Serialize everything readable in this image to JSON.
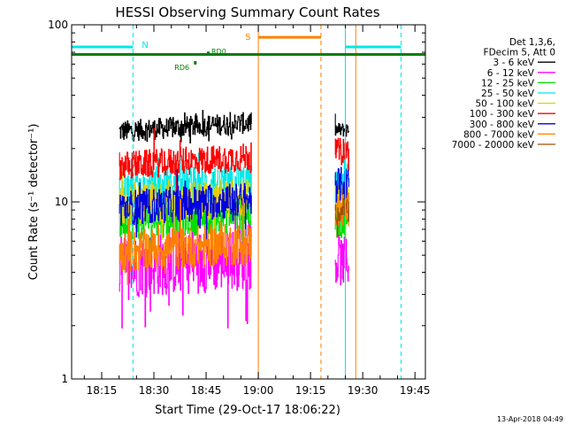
{
  "chart_data": {
    "type": "line",
    "title": "HESSI Observing Summary Count Rates",
    "xlabel": "Start Time (29-Oct-17 18:06:22)",
    "ylabel": "Count Rate (s⁻¹ detector⁻¹)",
    "y_scale": "log",
    "ylim": [
      1,
      100
    ],
    "xlim": [
      "18:06:22",
      "19:48:00"
    ],
    "x_ticks": [
      "18:15",
      "18:30",
      "18:45",
      "19:00",
      "19:15",
      "19:30",
      "19:45"
    ],
    "y_ticks": [
      "1",
      "10",
      "100"
    ],
    "grid": false,
    "legend": {
      "placement": "right",
      "header": [
        "Det 1,3,6,",
        "FDecim 5, Att 0"
      ],
      "entries": [
        {
          "label": "3 - 6 keV",
          "color": "#000000"
        },
        {
          "label": "6 - 12 keV",
          "color": "#ff00ff"
        },
        {
          "label": "12 - 25 keV",
          "color": "#00e000"
        },
        {
          "label": "25 - 50 keV",
          "color": "#00e8e8"
        },
        {
          "label": "50 - 100 keV",
          "color": "#e8d000"
        },
        {
          "label": "100 - 300 keV",
          "color": "#ff0000"
        },
        {
          "label": "300 - 800 keV",
          "color": "#0000e0"
        },
        {
          "label": "800 - 7000 keV",
          "color": "#ff8000"
        },
        {
          "label": "7000 - 20000 keV",
          "color": "#a05000"
        }
      ]
    },
    "series": [
      {
        "name": "3 - 6 keV",
        "color": "#000000",
        "segments": [
          {
            "start": "18:20",
            "end": "18:58",
            "level": 25.0,
            "noise": 0.06
          },
          {
            "start": "19:22",
            "end": "19:26",
            "level": 25.5,
            "noise": 0.04
          }
        ]
      },
      {
        "name": "6 - 12 keV",
        "color": "#ff00ff",
        "segments": [
          {
            "start": "18:20",
            "end": "18:58",
            "level": 4.3,
            "noise": 0.18
          },
          {
            "start": "19:22",
            "end": "19:26",
            "level": 4.6,
            "noise": 0.14
          }
        ]
      },
      {
        "name": "12 - 25 keV",
        "color": "#00e000",
        "segments": [
          {
            "start": "18:20",
            "end": "18:58",
            "level": 7.8,
            "noise": 0.11
          },
          {
            "start": "19:22",
            "end": "19:26",
            "level": 7.8,
            "noise": 0.1
          }
        ]
      },
      {
        "name": "25 - 50 keV",
        "color": "#00e8e8",
        "segments": [
          {
            "start": "18:20",
            "end": "18:58",
            "level": 11.5,
            "noise": 0.11
          },
          {
            "start": "19:22",
            "end": "19:26",
            "level": 12.0,
            "noise": 0.1
          }
        ]
      },
      {
        "name": "50 - 100 keV",
        "color": "#e8d000",
        "segments": [
          {
            "start": "18:20",
            "end": "18:58",
            "level": 9.5,
            "noise": 0.11
          },
          {
            "start": "19:22",
            "end": "19:26",
            "level": 10.0,
            "noise": 0.1
          }
        ]
      },
      {
        "name": "100 - 300 keV",
        "color": "#ff0000",
        "segments": [
          {
            "start": "18:20",
            "end": "18:58",
            "level": 16.0,
            "noise": 0.08
          },
          {
            "start": "19:22",
            "end": "19:26",
            "level": 19.5,
            "noise": 0.07
          }
        ]
      },
      {
        "name": "300 - 800 keV",
        "color": "#0000e0",
        "segments": [
          {
            "start": "18:20",
            "end": "18:58",
            "level": 9.2,
            "noise": 0.1
          },
          {
            "start": "19:22",
            "end": "19:26",
            "level": 12.5,
            "noise": 0.1
          }
        ]
      },
      {
        "name": "800 - 7000 keV",
        "color": "#ff8000",
        "segments": [
          {
            "start": "18:20",
            "end": "18:58",
            "level": 5.2,
            "noise": 0.12
          },
          {
            "start": "19:22",
            "end": "19:26",
            "level": 9.0,
            "noise": 0.1
          }
        ]
      },
      {
        "name": "7000 - 20000 keV",
        "color": "#a05000",
        "segments": [
          {
            "start": "19:22",
            "end": "19:26",
            "level": 8.5,
            "noise": 0.06
          }
        ]
      }
    ],
    "annotations": {
      "night_bars": [
        {
          "label": "N",
          "start": "18:06:22",
          "end": "18:24",
          "level": 75,
          "color": "#00e8e8"
        },
        {
          "label": "N",
          "start": "19:25",
          "end": "19:41",
          "level": 75,
          "color": "#00e8e8"
        }
      ],
      "saa_bar": {
        "label": "S",
        "start": "19:00",
        "end": "19:18",
        "level": 85,
        "color": "#ff8000"
      },
      "decimation_bar": {
        "start": "18:06:22",
        "end": "19:48:00",
        "level": 68,
        "color": "#008000"
      },
      "rd_labels": [
        {
          "label": "RD0",
          "time": "18:46",
          "level": 69
        },
        {
          "label": "RD6",
          "time": "18:41",
          "level": 61
        }
      ],
      "vlines": [
        {
          "time": "18:06:22",
          "color": "#00e8e8",
          "dashed": false
        },
        {
          "time": "18:24",
          "color": "#00e8e8",
          "dashed": true
        },
        {
          "time": "19:00",
          "color": "#ff8000",
          "dashed": false
        },
        {
          "time": "19:18",
          "color": "#ff8000",
          "dashed": true
        },
        {
          "time": "19:25",
          "color": "#00e8e8",
          "dashed": false
        },
        {
          "time": "19:28",
          "color": "#ff8000",
          "dashed": false
        },
        {
          "time": "19:41",
          "color": "#00e8e8",
          "dashed": true
        }
      ]
    },
    "footer_date": "13-Apr-2018 04:49"
  }
}
